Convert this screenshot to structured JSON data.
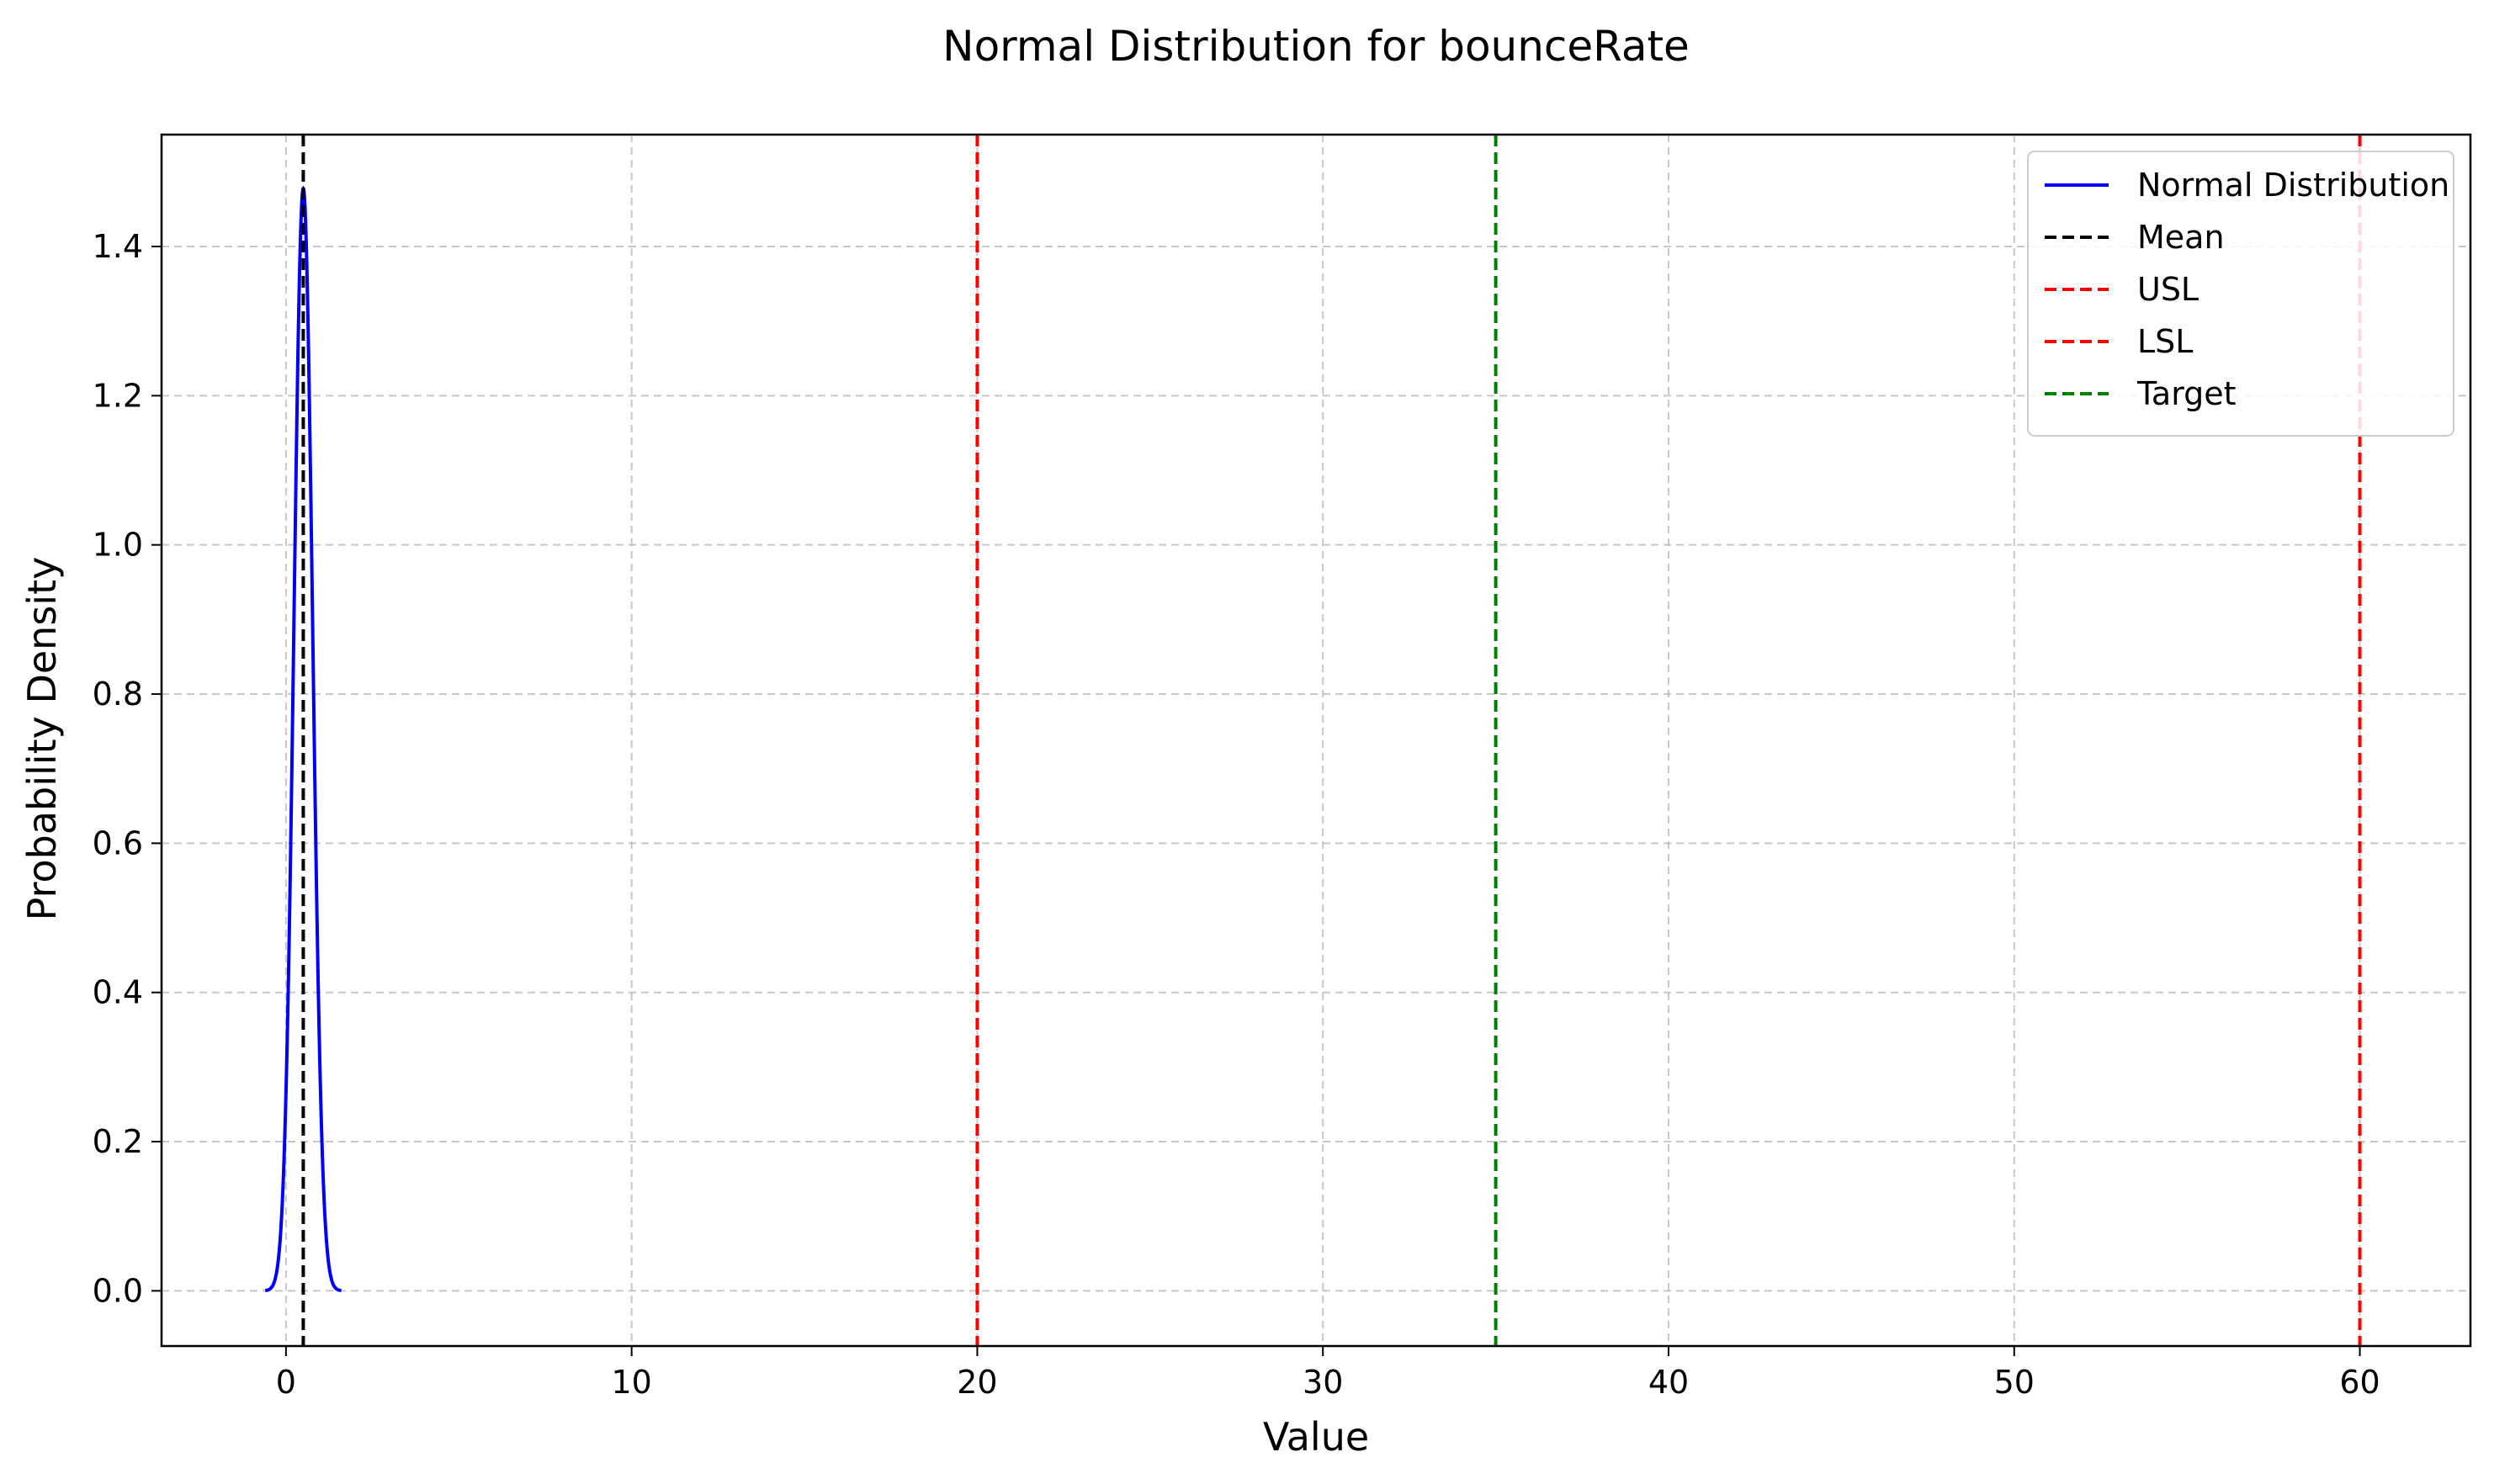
{
  "chart_data": {
    "type": "line",
    "title": "Normal Distribution for bounceRate",
    "xlabel": "Value",
    "ylabel": "Probability Density",
    "xlim": [
      -3.6,
      63.2
    ],
    "ylim": [
      -0.074,
      1.55
    ],
    "xticks": [
      0,
      10,
      20,
      30,
      40,
      50,
      60
    ],
    "yticks": [
      0.0,
      0.2,
      0.4,
      0.6,
      0.8,
      1.0,
      1.2,
      1.4
    ],
    "xtick_labels": [
      "0",
      "10",
      "20",
      "30",
      "40",
      "50",
      "60"
    ],
    "ytick_labels": [
      "0.0",
      "0.2",
      "0.4",
      "0.6",
      "0.8",
      "1.0",
      "1.2",
      "1.4"
    ],
    "grid": true,
    "legend_position": "top-right",
    "series": [
      {
        "name": "Normal Distribution",
        "kind": "curve",
        "color": "#0000ff",
        "style": "solid",
        "mean": 0.5,
        "std": 0.27,
        "x_range": [
          -0.6,
          1.6
        ]
      },
      {
        "name": "Mean",
        "kind": "vline",
        "x": 0.5,
        "color": "#000000",
        "style": "dashed"
      },
      {
        "name": "USL",
        "kind": "vline",
        "x": 60,
        "color": "#ff0000",
        "style": "dashed"
      },
      {
        "name": "LSL",
        "kind": "vline",
        "x": 20,
        "color": "#ff0000",
        "style": "dashed"
      },
      {
        "name": "Target",
        "kind": "vline",
        "x": 35,
        "color": "#008000",
        "style": "dashed"
      }
    ]
  }
}
